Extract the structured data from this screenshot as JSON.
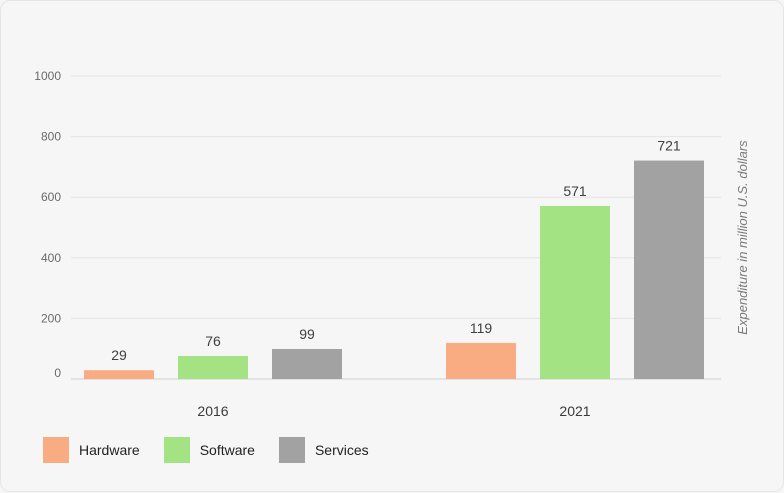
{
  "chart_data": {
    "type": "bar",
    "categories": [
      "2016",
      "2021"
    ],
    "series": [
      {
        "name": "Hardware",
        "values": [
          29,
          119
        ],
        "color": "#f9ab82"
      },
      {
        "name": "Software",
        "values": [
          76,
          571
        ],
        "color": "#a4e384"
      },
      {
        "name": "Services",
        "values": [
          99,
          721
        ],
        "color": "#a2a2a2"
      }
    ],
    "ylabel": "Expenditure in million U.S. dollars",
    "ylim": [
      0,
      1000
    ],
    "yticks": [
      0,
      200,
      400,
      600,
      800,
      1000
    ],
    "grid": true,
    "legend_position": "bottom-left"
  }
}
